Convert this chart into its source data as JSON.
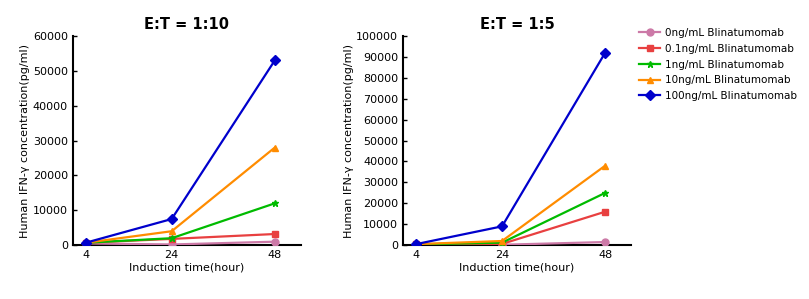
{
  "plot1": {
    "title": "E:T = 1:10",
    "xlabel": "Induction time(hour)",
    "ylabel": "Human IFN-γ concentration(pg/ml)",
    "ylim": [
      0,
      60000
    ],
    "yticks": [
      0,
      10000,
      20000,
      30000,
      40000,
      50000,
      60000
    ],
    "x": [
      4,
      24,
      48
    ],
    "series": [
      {
        "label": "0ng/mL Blinatumomab",
        "color": "#CC79A7",
        "marker": "o",
        "values": [
          500,
          200,
          1000
        ]
      },
      {
        "label": "0.1ng/mL Blinatumomab",
        "color": "#E84040",
        "marker": "s",
        "values": [
          700,
          1800,
          3200
        ]
      },
      {
        "label": "1ng/mL Blinatumomab",
        "color": "#00BB00",
        "marker": "*",
        "values": [
          700,
          2000,
          12000
        ]
      },
      {
        "label": "10ng/mL Blinatumomab",
        "color": "#FF8C00",
        "marker": "^",
        "values": [
          700,
          4000,
          28000
        ]
      },
      {
        "label": "100ng/mL Blinatumomab",
        "color": "#0000CC",
        "marker": "D",
        "values": [
          700,
          7500,
          53000
        ]
      }
    ]
  },
  "plot2": {
    "title": "E:T = 1:5",
    "xlabel": "Induction time(hour)",
    "ylabel": "Human IFN-γ concentration(pg/ml)",
    "ylim": [
      0,
      100000
    ],
    "yticks": [
      0,
      10000,
      20000,
      30000,
      40000,
      50000,
      60000,
      70000,
      80000,
      90000,
      100000
    ],
    "x": [
      4,
      24,
      48
    ],
    "series": [
      {
        "label": "0ng/mL Blinatumomab",
        "color": "#CC79A7",
        "marker": "o",
        "values": [
          200,
          200,
          1500
        ]
      },
      {
        "label": "0.1ng/mL Blinatumomab",
        "color": "#E84040",
        "marker": "s",
        "values": [
          400,
          600,
          16000
        ]
      },
      {
        "label": "1ng/mL Blinatumomab",
        "color": "#00BB00",
        "marker": "*",
        "values": [
          400,
          1200,
          25000
        ]
      },
      {
        "label": "10ng/mL Blinatumomab",
        "color": "#FF8C00",
        "marker": "^",
        "values": [
          500,
          2000,
          38000
        ]
      },
      {
        "label": "100ng/mL Blinatumomab",
        "color": "#0000CC",
        "marker": "D",
        "values": [
          500,
          9000,
          92000
        ]
      }
    ]
  },
  "legend_fontsize": 7.5,
  "axis_fontsize": 8,
  "title_fontsize": 10.5,
  "tick_fontsize": 8,
  "bg_color": "#FFFFFF",
  "linewidth": 1.6,
  "markersize": 5
}
